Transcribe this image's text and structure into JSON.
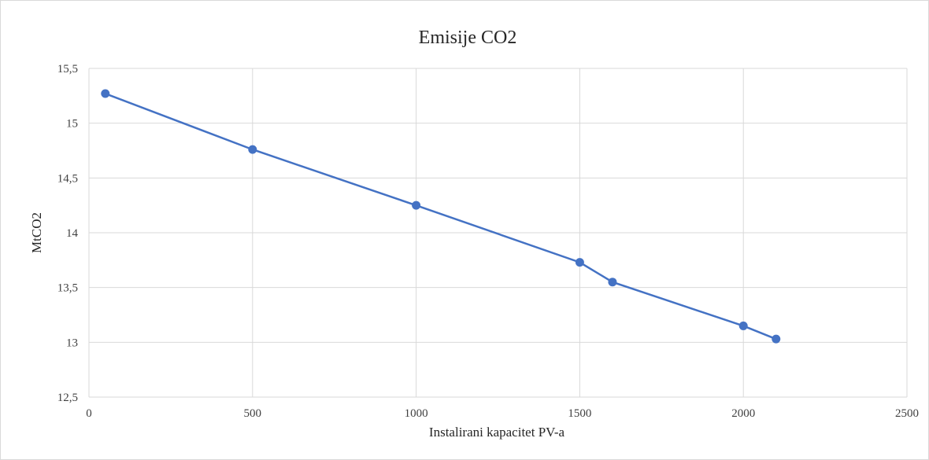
{
  "chart_data": {
    "type": "scatter",
    "title": "Emisije CO2",
    "xlabel": "Instalirani kapacitet PV-a",
    "ylabel": "MtCO2",
    "xlim": [
      0,
      2500
    ],
    "ylim": [
      12.5,
      15.5
    ],
    "x_ticks": [
      0,
      500,
      1000,
      1500,
      2000,
      2500
    ],
    "x_tick_labels": [
      "0",
      "500",
      "1000",
      "1500",
      "2000",
      "2500"
    ],
    "y_ticks": [
      12.5,
      13,
      13.5,
      14,
      14.5,
      15,
      15.5
    ],
    "y_tick_labels": [
      "12,5",
      "13",
      "13,5",
      "14",
      "14,5",
      "15",
      "15,5"
    ],
    "grid": true,
    "lines_connected": true,
    "series": [
      {
        "color": "#4472c4",
        "points": [
          {
            "x": 50,
            "y": 15.27
          },
          {
            "x": 500,
            "y": 14.76
          },
          {
            "x": 1000,
            "y": 14.25
          },
          {
            "x": 1500,
            "y": 13.73
          },
          {
            "x": 1600,
            "y": 13.55
          },
          {
            "x": 2000,
            "y": 13.15
          },
          {
            "x": 2100,
            "y": 13.03
          }
        ]
      }
    ],
    "grid_color": "#d9d9d9"
  }
}
